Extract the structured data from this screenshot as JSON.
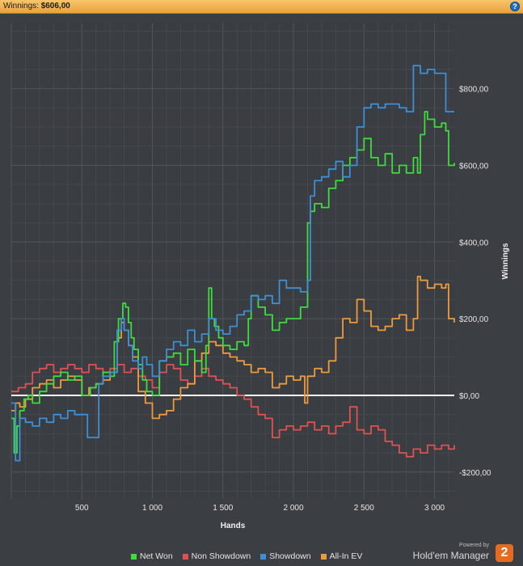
{
  "header": {
    "label": "Winnings:",
    "value": "$606,00",
    "help_glyph": "?"
  },
  "chart_data": {
    "type": "line",
    "xlabel": "Hands",
    "ylabel": "Winnings",
    "xlim": [
      0,
      3140
    ],
    "ylim": [
      -270,
      970
    ],
    "x_ticks": [
      500,
      1000,
      1500,
      2000,
      2500,
      3000
    ],
    "x_tick_labels": [
      "500",
      "1 000",
      "1 500",
      "2 000",
      "2 500",
      "3 000"
    ],
    "y_ticks": [
      -200,
      0,
      200,
      400,
      600,
      800
    ],
    "y_tick_labels": [
      "-$200,00",
      "$0,00",
      "$200,00",
      "$400,00",
      "$600,00",
      "$800,00"
    ],
    "zero_line": 0,
    "grid": true,
    "legend": "bottom-center",
    "series": [
      {
        "name": "Net Won",
        "color": "#3fdc3f",
        "x": [
          0,
          20,
          40,
          60,
          90,
          120,
          150,
          200,
          250,
          300,
          350,
          400,
          450,
          500,
          560,
          600,
          650,
          700,
          730,
          760,
          790,
          810,
          830,
          850,
          870,
          900,
          930,
          960,
          1000,
          1050,
          1100,
          1150,
          1200,
          1250,
          1300,
          1350,
          1380,
          1400,
          1420,
          1440,
          1470,
          1500,
          1550,
          1600,
          1650,
          1680,
          1700,
          1750,
          1800,
          1850,
          1900,
          1950,
          2000,
          2050,
          2100,
          2120,
          2150,
          2200,
          2250,
          2300,
          2350,
          2400,
          2450,
          2500,
          2550,
          2600,
          2650,
          2700,
          2750,
          2800,
          2850,
          2880,
          2900,
          2930,
          2950,
          3000,
          3050,
          3080,
          3100,
          3140
        ],
        "y": [
          -60,
          -150,
          -80,
          -40,
          -10,
          0,
          -20,
          10,
          30,
          50,
          60,
          40,
          50,
          0,
          20,
          30,
          60,
          50,
          140,
          200,
          240,
          230,
          190,
          150,
          120,
          80,
          40,
          10,
          0,
          90,
          100,
          110,
          80,
          120,
          90,
          60,
          130,
          280,
          200,
          180,
          150,
          130,
          120,
          140,
          130,
          200,
          260,
          230,
          210,
          170,
          190,
          200,
          200,
          230,
          450,
          480,
          500,
          490,
          540,
          560,
          600,
          620,
          640,
          670,
          620,
          600,
          630,
          580,
          600,
          580,
          620,
          580,
          680,
          740,
          720,
          700,
          710,
          690,
          600,
          606
        ]
      },
      {
        "name": "Non Showdown",
        "color": "#e05252",
        "x": [
          0,
          50,
          100,
          150,
          200,
          250,
          300,
          350,
          400,
          450,
          500,
          550,
          600,
          650,
          700,
          750,
          800,
          850,
          900,
          950,
          1000,
          1050,
          1100,
          1150,
          1200,
          1250,
          1300,
          1350,
          1400,
          1450,
          1500,
          1550,
          1600,
          1650,
          1700,
          1750,
          1800,
          1850,
          1900,
          1950,
          2000,
          2050,
          2100,
          2150,
          2200,
          2250,
          2300,
          2350,
          2400,
          2450,
          2500,
          2550,
          2600,
          2650,
          2700,
          2750,
          2800,
          2850,
          2900,
          2950,
          3000,
          3050,
          3100,
          3140
        ],
        "y": [
          10,
          20,
          30,
          60,
          70,
          80,
          60,
          70,
          80,
          70,
          60,
          80,
          70,
          60,
          70,
          80,
          60,
          70,
          50,
          40,
          20,
          60,
          80,
          70,
          40,
          30,
          50,
          70,
          50,
          40,
          30,
          20,
          0,
          -10,
          -30,
          -50,
          -60,
          -110,
          -90,
          -80,
          -90,
          -80,
          -70,
          -90,
          -80,
          -100,
          -80,
          -70,
          -30,
          -90,
          -100,
          -80,
          -90,
          -120,
          -130,
          -150,
          -160,
          -140,
          -150,
          -130,
          -140,
          -130,
          -140,
          -130
        ]
      },
      {
        "name": "Showdown",
        "color": "#3d8fd6",
        "x": [
          0,
          30,
          60,
          100,
          150,
          200,
          250,
          300,
          350,
          400,
          450,
          500,
          540,
          560,
          580,
          620,
          650,
          700,
          750,
          780,
          800,
          830,
          860,
          900,
          930,
          960,
          1000,
          1050,
          1100,
          1150,
          1200,
          1250,
          1300,
          1350,
          1400,
          1450,
          1500,
          1550,
          1600,
          1650,
          1700,
          1750,
          1800,
          1850,
          1900,
          1950,
          2000,
          2050,
          2100,
          2120,
          2150,
          2200,
          2250,
          2300,
          2350,
          2400,
          2450,
          2500,
          2550,
          2600,
          2650,
          2700,
          2750,
          2800,
          2850,
          2880,
          2900,
          2950,
          3000,
          3050,
          3080,
          3100,
          3140
        ],
        "y": [
          -20,
          -170,
          -60,
          -70,
          -80,
          -60,
          -70,
          -50,
          -60,
          -40,
          -50,
          -50,
          -110,
          -110,
          -110,
          30,
          50,
          60,
          170,
          200,
          170,
          130,
          90,
          70,
          100,
          80,
          50,
          90,
          120,
          140,
          130,
          170,
          140,
          160,
          200,
          170,
          160,
          180,
          210,
          220,
          260,
          250,
          260,
          240,
          300,
          280,
          280,
          270,
          300,
          520,
          560,
          570,
          590,
          610,
          570,
          600,
          700,
          750,
          760,
          750,
          760,
          760,
          750,
          740,
          860,
          860,
          840,
          850,
          840,
          840,
          740,
          740,
          740
        ]
      },
      {
        "name": "All-In EV",
        "color": "#ef9a3d",
        "x": [
          0,
          30,
          60,
          100,
          150,
          200,
          250,
          300,
          350,
          400,
          450,
          500,
          550,
          600,
          650,
          700,
          750,
          780,
          800,
          830,
          860,
          900,
          950,
          1000,
          1050,
          1100,
          1150,
          1200,
          1250,
          1300,
          1350,
          1400,
          1450,
          1500,
          1550,
          1600,
          1650,
          1700,
          1750,
          1800,
          1850,
          1900,
          1950,
          2000,
          2050,
          2080,
          2100,
          2150,
          2200,
          2250,
          2300,
          2350,
          2400,
          2450,
          2500,
          2550,
          2600,
          2650,
          2700,
          2750,
          2800,
          2850,
          2880,
          2900,
          2950,
          3000,
          3050,
          3080,
          3100,
          3140
        ],
        "y": [
          -40,
          -20,
          -30,
          -10,
          20,
          30,
          40,
          20,
          40,
          50,
          40,
          0,
          20,
          30,
          40,
          60,
          150,
          190,
          170,
          130,
          100,
          10,
          -20,
          -60,
          -50,
          -40,
          -10,
          20,
          30,
          90,
          110,
          140,
          130,
          110,
          100,
          90,
          80,
          60,
          70,
          60,
          20,
          30,
          50,
          40,
          50,
          -20,
          50,
          70,
          60,
          90,
          150,
          200,
          190,
          250,
          220,
          180,
          170,
          180,
          200,
          210,
          170,
          200,
          310,
          300,
          280,
          290,
          280,
          290,
          200,
          190
        ]
      }
    ]
  },
  "brand": {
    "powered_by": "Powered by",
    "name": "Hold'em Manager",
    "badge": "2"
  }
}
